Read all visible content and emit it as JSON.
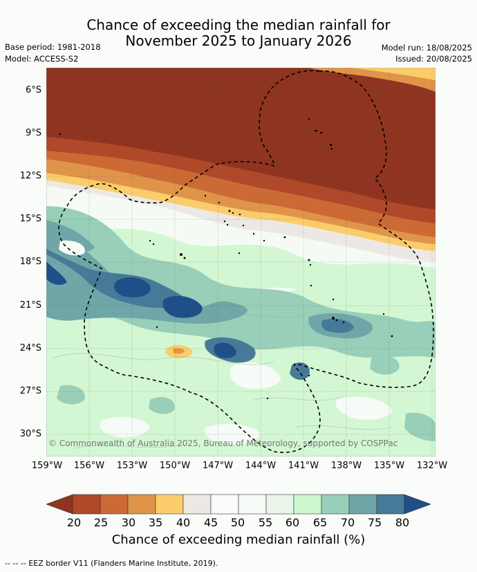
{
  "title_line1": "Chance of exceeding the median rainfall for",
  "title_line2": "November 2025 to January 2026",
  "base_period": "Base period: 1981-2018",
  "model": "Model: ACCESS-S2",
  "model_run": "Model run: 18/08/2025",
  "issued": "Issued: 20/08/2025",
  "lat_labels": [
    "6°S",
    "9°S",
    "12°S",
    "15°S",
    "18°S",
    "21°S",
    "24°S",
    "27°S",
    "30°S"
  ],
  "lon_labels": [
    "159°W",
    "156°W",
    "153°W",
    "150°W",
    "147°W",
    "144°W",
    "141°W",
    "138°W",
    "135°W",
    "132°W"
  ],
  "copyright": "© Commonwealth of Australia 2025, Bureau of Meteorology, supported by COSPPac",
  "colorbar": {
    "labels": [
      "20",
      "25",
      "30",
      "35",
      "40",
      "45",
      "50",
      "55",
      "60",
      "65",
      "70",
      "75",
      "80"
    ],
    "colors": [
      "#8f3420",
      "#b0482a",
      "#cc6a35",
      "#e0944a",
      "#fbcd6a",
      "#ece9e5",
      "#fbfbfb",
      "#f7fbf7",
      "#e8f5e8",
      "#cdf7cf",
      "#99cfb8",
      "#6fa6a8",
      "#467a98",
      "#1f4f88"
    ],
    "title": "Chance of exceeding median rainfall (%)"
  },
  "footer": "--  --  -- EEZ border V11 (Flanders Marine Institute, 2019)."
}
